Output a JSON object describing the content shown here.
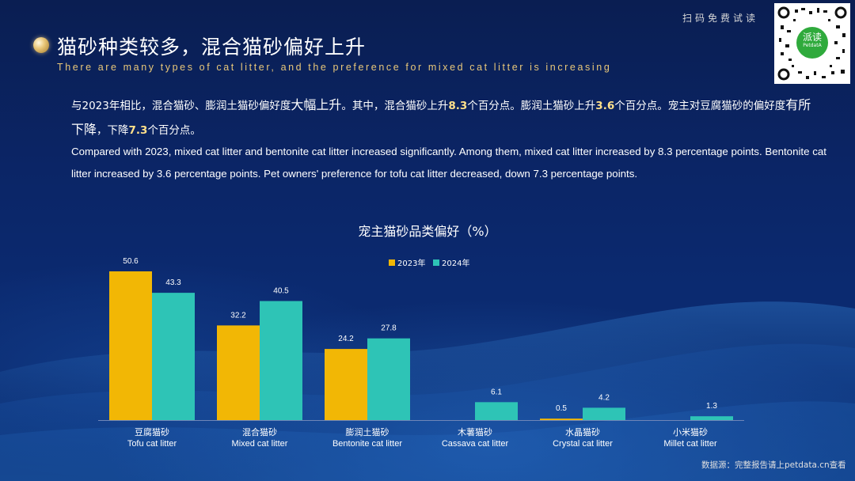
{
  "header": {
    "title_cn": "猫砂种类较多，混合猫砂偏好上升",
    "title_en": "There are many types of cat litter, and the preference for mixed cat litter is increasing"
  },
  "qr": {
    "scan_label": "扫码免费试读",
    "logo_text": "派读",
    "logo_sub": "PetdatA"
  },
  "summary": {
    "cn_parts": [
      {
        "t": "与2023年相比，混合猫砂、膨润土猫砂偏好度",
        "s": "n"
      },
      {
        "t": "大幅上升",
        "s": "em"
      },
      {
        "t": "。其中，混合猫砂上升",
        "s": "n"
      },
      {
        "t": "8.3",
        "s": "hl"
      },
      {
        "t": "个百分点。膨润土猫砂上升",
        "s": "n"
      },
      {
        "t": "3.6",
        "s": "hl"
      },
      {
        "t": "个百分点。宠主对豆腐猫砂的偏好度",
        "s": "n"
      },
      {
        "t": "有所下降",
        "s": "em"
      },
      {
        "t": "，下降",
        "s": "n"
      },
      {
        "t": "7.3",
        "s": "hl"
      },
      {
        "t": "个百分点。",
        "s": "n"
      }
    ],
    "en": "Compared with 2023, mixed cat litter and bentonite cat litter increased significantly. Among them, mixed cat litter increased by 8.3 percentage points. Bentonite cat litter increased by 3.6 percentage points. Pet owners' preference for tofu cat litter decreased, down 7.3 percentage points."
  },
  "chart_data": {
    "type": "bar",
    "title": "宠主猫砂品类偏好（%）",
    "categories": [
      {
        "cn": "豆腐猫砂",
        "en": "Tofu cat litter"
      },
      {
        "cn": "混合猫砂",
        "en": "Mixed cat litter"
      },
      {
        "cn": "膨润土猫砂",
        "en": "Bentonite cat litter"
      },
      {
        "cn": "木薯猫砂",
        "en": "Cassava cat litter"
      },
      {
        "cn": "水晶猫砂",
        "en": "Crystal cat litter"
      },
      {
        "cn": "小米猫砂",
        "en": "Millet cat litter"
      }
    ],
    "series": [
      {
        "name": "2023年",
        "color": "#f2b705",
        "values": [
          50.6,
          32.2,
          24.2,
          null,
          0.5,
          null
        ]
      },
      {
        "name": "2024年",
        "color": "#2ec4b6",
        "values": [
          43.3,
          40.5,
          27.8,
          6.1,
          4.2,
          1.3
        ]
      }
    ],
    "ylim": [
      0,
      55
    ],
    "grid": false,
    "legend_position": "top-center"
  },
  "footer": {
    "source": "数据源：完整报告请上petdata.cn查看"
  }
}
